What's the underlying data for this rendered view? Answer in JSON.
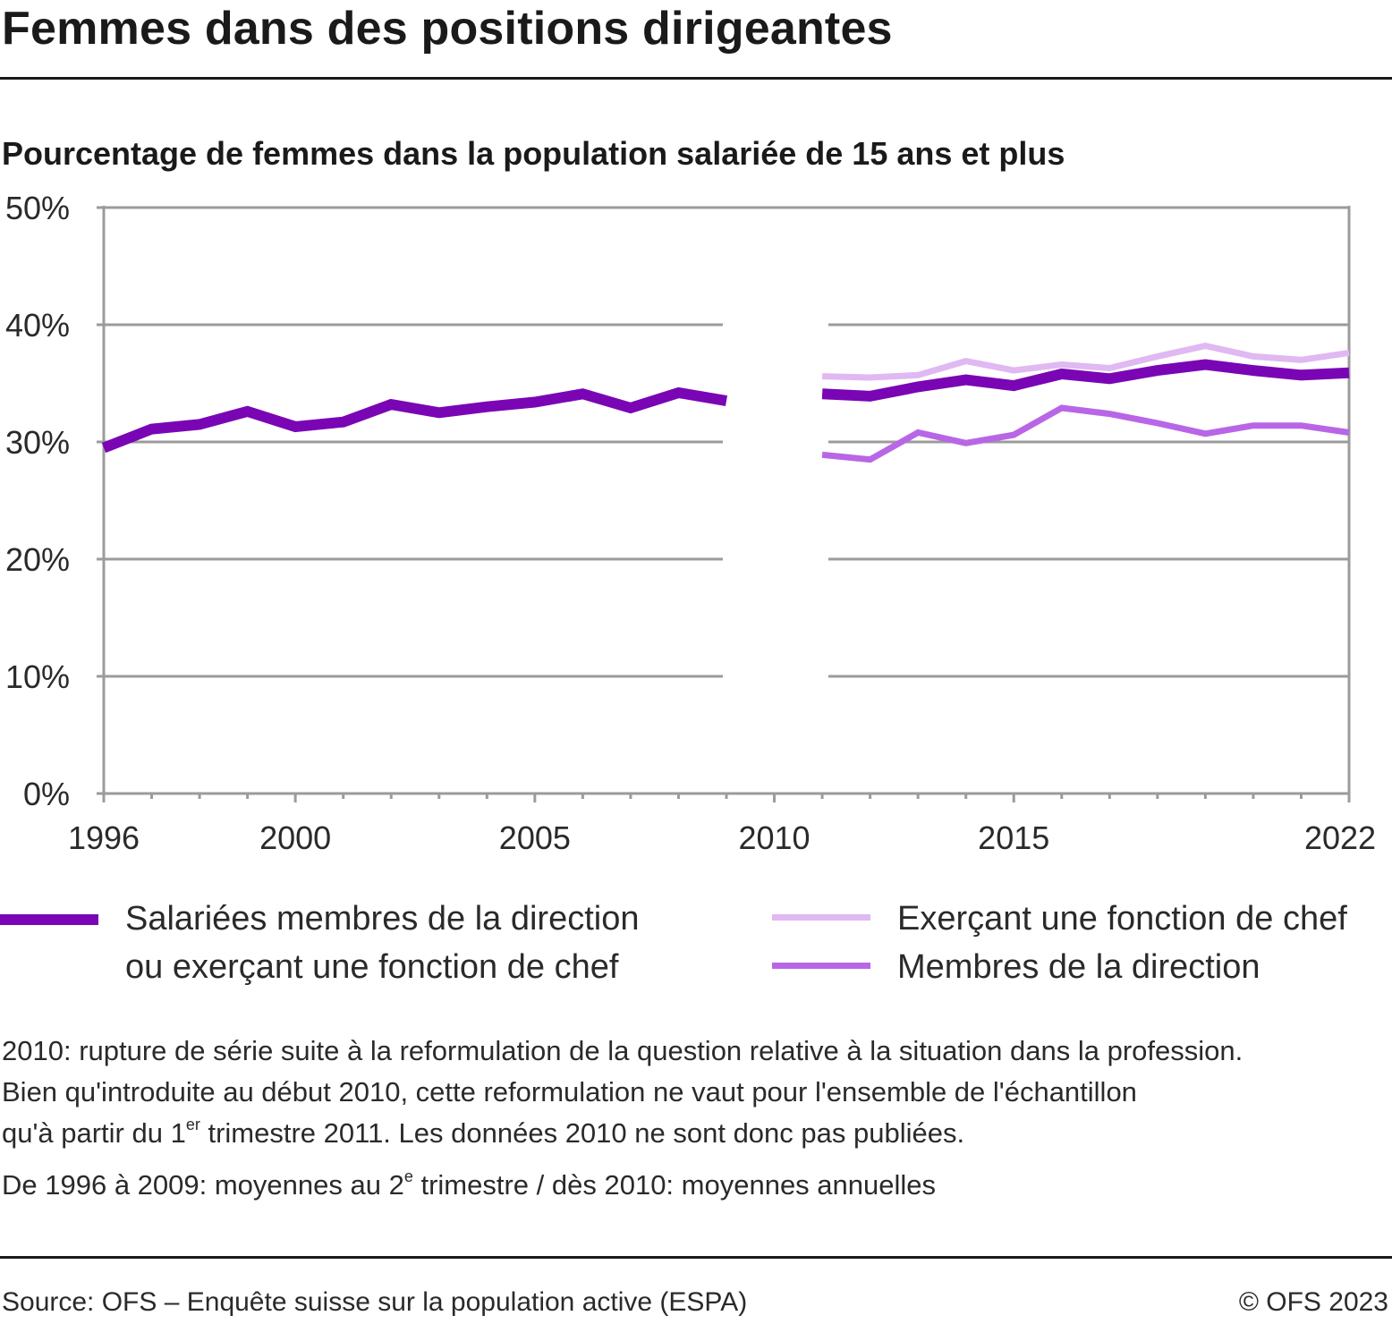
{
  "header": {
    "title": "Femmes dans des positions dirigeantes",
    "subtitle": "Pourcentage de femmes dans la population salariée de 15 ans et plus"
  },
  "chart_data": {
    "type": "line",
    "title": "Femmes dans des positions dirigeantes",
    "subtitle": "Pourcentage de femmes dans la population salariée de 15 ans et plus",
    "xlabel": "",
    "ylabel": "",
    "xlim": [
      1996,
      2022
    ],
    "ylim": [
      0,
      50
    ],
    "grid": true,
    "legend_position": "bottom",
    "x_ticks": [
      1996,
      2000,
      2005,
      2010,
      2015,
      2022
    ],
    "x_tick_labels": [
      "1996",
      "2000",
      "2005",
      "2010",
      "2015",
      "2022"
    ],
    "y_ticks": [
      0,
      10,
      20,
      30,
      40,
      50
    ],
    "y_tick_labels": [
      "0%",
      "10%",
      "20%",
      "30%",
      "40%",
      "50%"
    ],
    "gap": {
      "years": [
        2010
      ],
      "note": "rupture de série"
    },
    "series": [
      {
        "name": "Salariées membres de la direction ou exerçant une fonction de chef",
        "color": "#7a05b5",
        "x": [
          1996,
          1997,
          1998,
          1999,
          2000,
          2001,
          2002,
          2003,
          2004,
          2005,
          2006,
          2007,
          2008,
          2009,
          null,
          2011,
          2012,
          2013,
          2014,
          2015,
          2016,
          2017,
          2018,
          2019,
          2020,
          2021,
          2022
        ],
        "values": [
          29.5,
          31.1,
          31.5,
          32.6,
          31.3,
          31.7,
          33.2,
          32.5,
          33.0,
          33.4,
          34.1,
          32.9,
          34.2,
          33.5,
          null,
          34.1,
          33.9,
          34.7,
          35.3,
          34.8,
          35.8,
          35.4,
          36.1,
          36.6,
          36.1,
          35.7,
          35.9
        ]
      },
      {
        "name": "Exerçant une fonction de chef",
        "color": "#e0b8f2",
        "x": [
          2011,
          2012,
          2013,
          2014,
          2015,
          2016,
          2017,
          2018,
          2019,
          2020,
          2021,
          2022
        ],
        "values": [
          35.6,
          35.5,
          35.7,
          36.9,
          36.1,
          36.6,
          36.3,
          37.3,
          38.2,
          37.3,
          37.0,
          37.6
        ]
      },
      {
        "name": "Membres de la direction",
        "color": "#b866e6",
        "x": [
          2011,
          2012,
          2013,
          2014,
          2015,
          2016,
          2017,
          2018,
          2019,
          2020,
          2021,
          2022
        ],
        "values": [
          28.9,
          28.5,
          30.8,
          29.9,
          30.6,
          32.9,
          32.4,
          31.6,
          30.7,
          31.4,
          31.4,
          30.8
        ]
      }
    ]
  },
  "legend": {
    "items": [
      {
        "label_line1": "Salariées membres de la direction",
        "label_line2": "ou exerçant une fonction de chef",
        "color": "#7a05b5"
      },
      {
        "label_line1": "Exerçant une fonction de chef",
        "color": "#e0b8f2"
      },
      {
        "label_line1": "Membres de la direction",
        "color": "#b866e6"
      }
    ]
  },
  "notes": {
    "line1": "2010: rupture de série suite à la reformulation de la question relative à la situation dans la profession.",
    "line2": "Bien qu'introduite au début 2010, cette reformulation ne vaut pour l'ensemble de l'échantillon",
    "line3_pre": "qu'à partir du 1",
    "line3_sup": "er",
    "line3_post": " trimestre 2011. Les données 2010 ne sont donc pas publiées.",
    "line4_pre": "De 1996 à 2009: moyennes au 2",
    "line4_sup": "e",
    "line4_post": " trimestre / dès 2010: moyennes annuelles"
  },
  "footer": {
    "source": "Source: OFS – Enquête suisse sur la population active (ESPA)",
    "copyright": "© OFS 2023"
  }
}
